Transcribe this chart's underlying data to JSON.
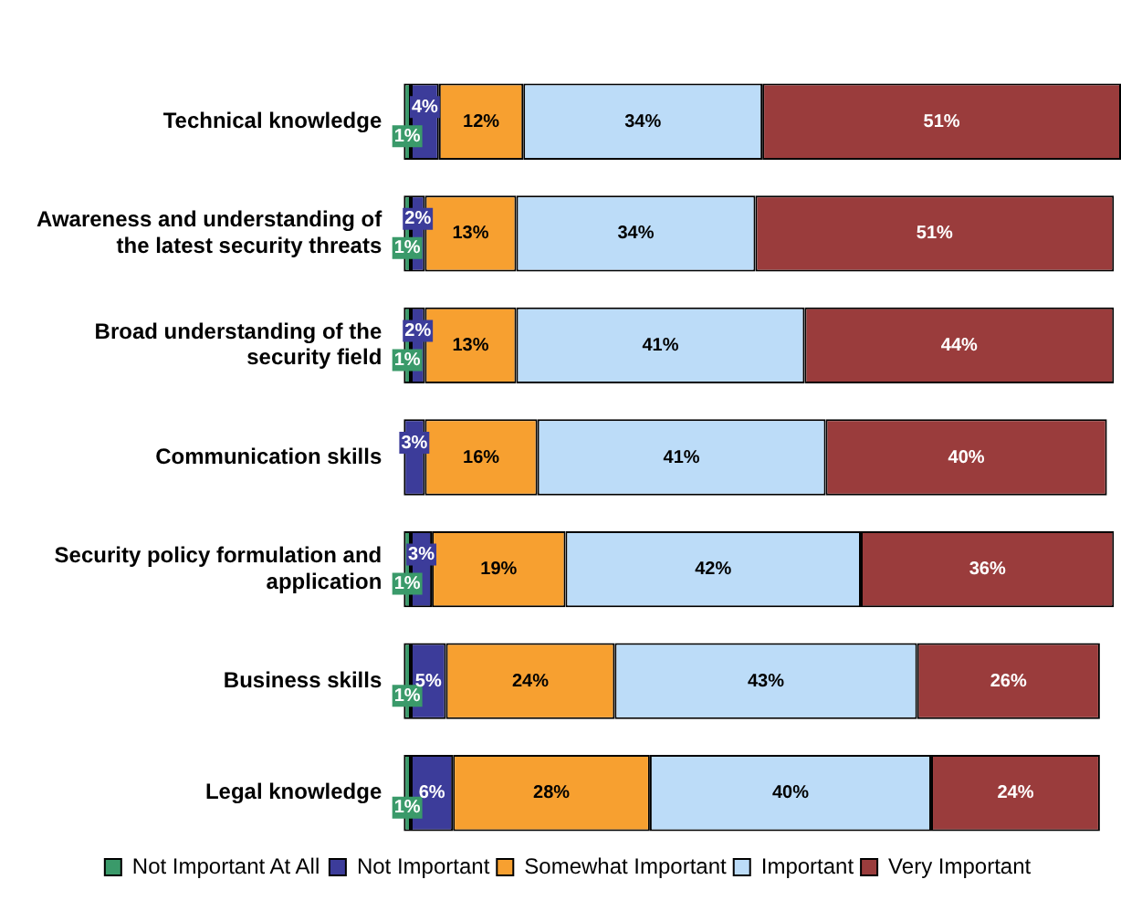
{
  "chart_data": {
    "type": "bar",
    "orientation": "horizontal",
    "stacked": true,
    "categories": [
      "Technical knowledge",
      "Awareness and understanding of the latest security threats",
      "Broad understanding of the security field",
      "Communication skills",
      "Security policy formulation and application",
      "Business skills",
      "Legal knowledge"
    ],
    "series": [
      {
        "name": "Not Important At All",
        "color": "#3a9a6a",
        "values": [
          1,
          1,
          1,
          null,
          1,
          1,
          1
        ],
        "value_labels": [
          "1%",
          "1%",
          "1%",
          null,
          "1%",
          "1%",
          "1%"
        ]
      },
      {
        "name": "Not Important",
        "color": "#3c3c9a",
        "values": [
          4,
          2,
          2,
          3,
          3,
          5,
          6
        ],
        "value_labels": [
          "4%",
          "2%",
          "2%",
          "3%",
          "3%",
          "5%",
          "6%"
        ]
      },
      {
        "name": "Somewhat Important",
        "color": "#f7a030",
        "values": [
          12,
          13,
          13,
          16,
          19,
          24,
          28
        ],
        "value_labels": [
          "12%",
          "13%",
          "13%",
          "16%",
          "19%",
          "24%",
          "28%"
        ]
      },
      {
        "name": "Important",
        "color": "#bcdcf8",
        "values": [
          34,
          34,
          41,
          41,
          42,
          43,
          40
        ],
        "value_labels": [
          "34%",
          "34%",
          "41%",
          "41%",
          "42%",
          "43%",
          "40%"
        ]
      },
      {
        "name": "Very Important",
        "color": "#9a3c3c",
        "values": [
          51,
          51,
          44,
          40,
          36,
          26,
          24
        ],
        "value_labels": [
          "51%",
          "51%",
          "44%",
          "40%",
          "36%",
          "26%",
          "24%"
        ]
      }
    ],
    "xlim": [
      0,
      102
    ],
    "tick_labels": "y",
    "legend": "bottom"
  }
}
